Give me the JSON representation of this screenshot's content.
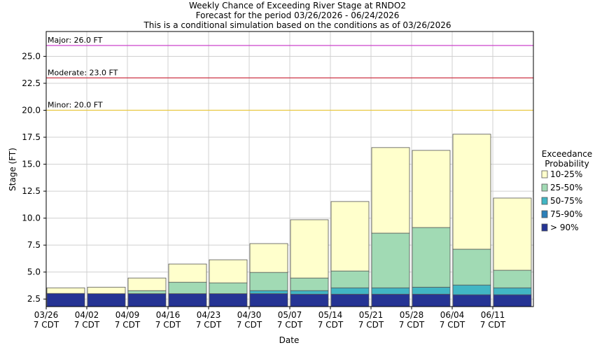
{
  "chart_data": {
    "type": "range-bar",
    "title": "Weekly Chance of Exceeding River Stage at RNDO2",
    "subtitle": "Forecast for the period 03/26/2026 - 06/24/2026",
    "note": "This is a conditional simulation based on the conditions as of 03/26/2026",
    "x_label": "Date",
    "y_label": "Stage (FT)",
    "categories": [
      "03/26",
      "04/02",
      "04/09",
      "04/16",
      "04/23",
      "04/30",
      "05/07",
      "05/14",
      "05/21",
      "05/28",
      "06/04",
      "06/11"
    ],
    "x_tick_suffix": "7 CDT",
    "ylim": [
      1.8,
      27.3
    ],
    "yticks": [
      2.5,
      {
        "value": 5,
        "label": "5.0"
      },
      7.5,
      {
        "value": 10,
        "label": "10.0"
      },
      12.5,
      {
        "value": 15,
        "label": "15.0"
      },
      17.5,
      {
        "value": 20,
        "label": "20.0"
      },
      22.5,
      {
        "value": 25,
        "label": "25.0"
      }
    ],
    "grid": true,
    "legend_title": [
      "Exceedance",
      "Probability"
    ],
    "series": [
      {
        "name": "> 90%",
        "color": "#253494",
        "values": [
          3.02,
          3.0,
          3.0,
          3.0,
          3.0,
          3.0,
          2.95,
          2.95,
          2.95,
          2.95,
          2.9,
          2.9
        ]
      },
      {
        "name": "75-90%",
        "color": "#2c7fb8",
        "values": [
          3.02,
          3.0,
          3.0,
          3.0,
          3.0,
          3.0,
          2.95,
          2.95,
          2.95,
          2.95,
          2.9,
          2.9
        ]
      },
      {
        "name": "50-75%",
        "color": "#41b6c4",
        "values": [
          3.02,
          3.0,
          3.0,
          3.0,
          3.0,
          3.28,
          3.28,
          3.54,
          3.54,
          3.6,
          3.8,
          3.54
        ]
      },
      {
        "name": "25-50%",
        "color": "#a1dab4",
        "values": [
          3.02,
          3.0,
          3.28,
          4.06,
          4.0,
          4.97,
          4.45,
          5.1,
          8.61,
          9.13,
          7.12,
          5.17
        ]
      },
      {
        "name": "10-25%",
        "color": "#ffffcc",
        "values": [
          3.54,
          3.6,
          4.45,
          5.75,
          6.14,
          7.64,
          9.85,
          11.54,
          16.54,
          16.28,
          17.78,
          11.86
        ]
      }
    ],
    "thresholds": [
      {
        "label": "Major: 26.0 FT",
        "value": 26,
        "color": "#cc44cc"
      },
      {
        "label": "Moderate: 23.0 FT",
        "value": 23,
        "color": "#cc3344"
      },
      {
        "label": "Minor: 20.0 FT",
        "value": 20,
        "color": "#e8c840"
      }
    ]
  }
}
